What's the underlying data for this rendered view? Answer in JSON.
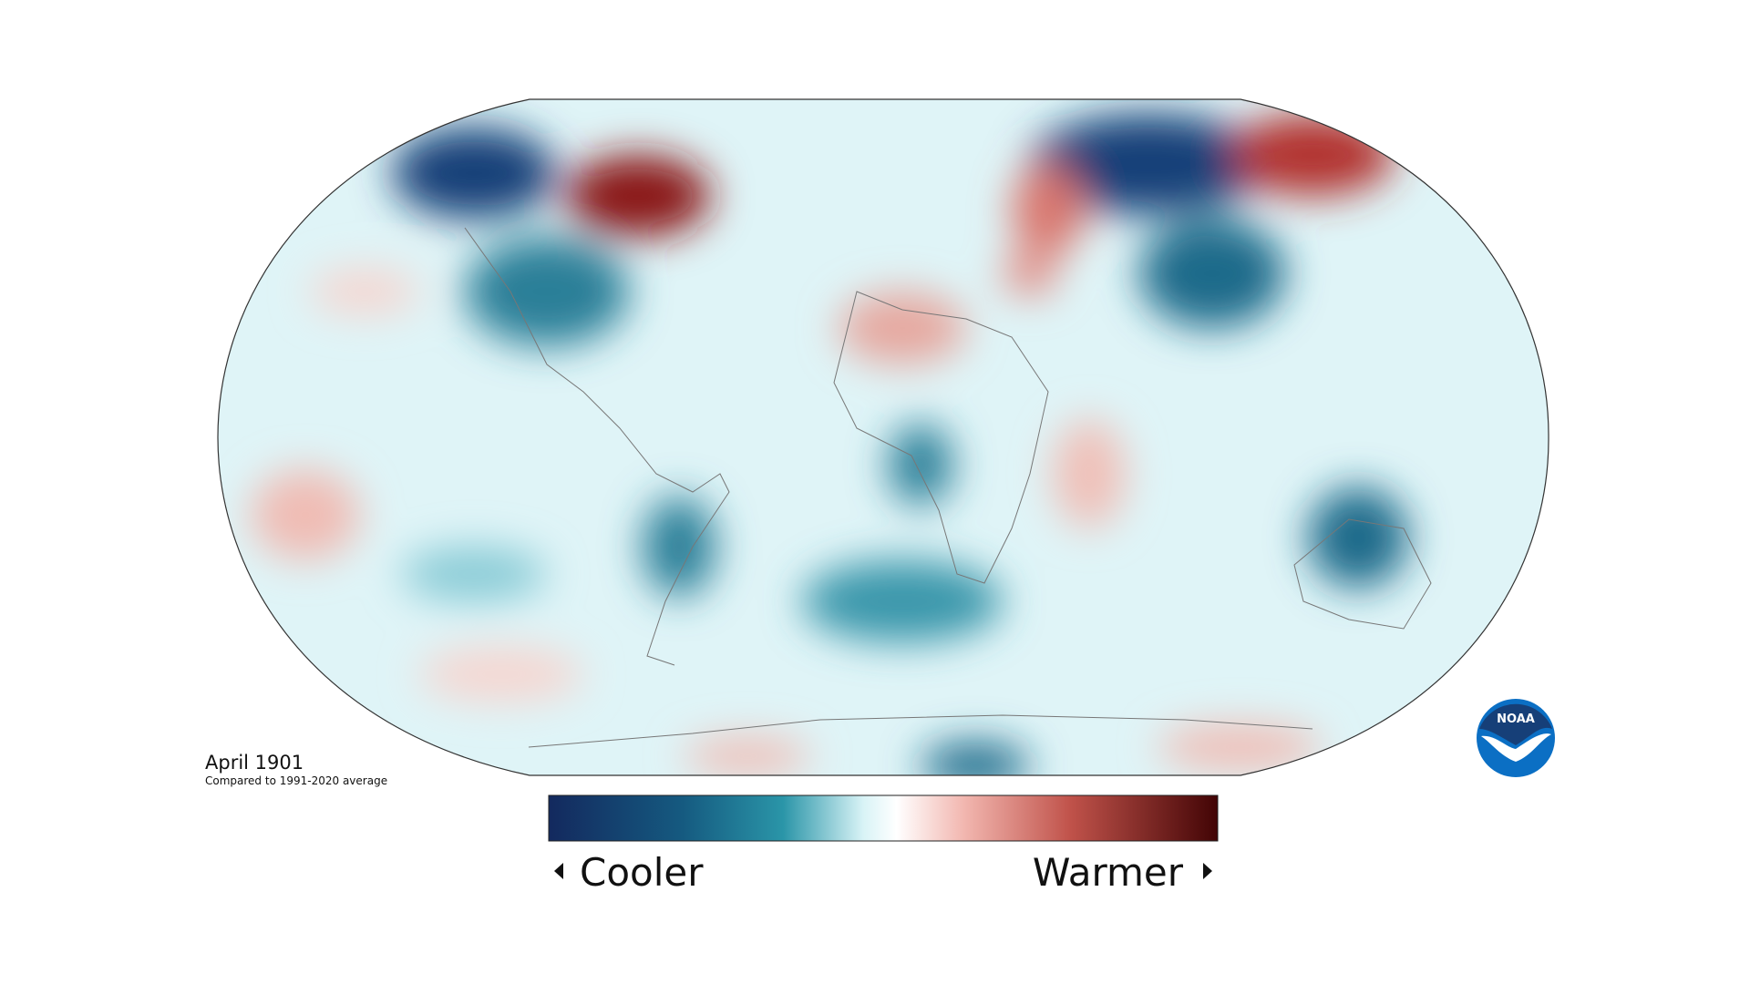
{
  "map": {
    "title": "April 1901",
    "subtitle": "Compared to 1991-2020 average"
  },
  "legend": {
    "low_label": "Cooler",
    "high_label": "Warmer"
  },
  "logo": {
    "text": "NOAA"
  }
}
